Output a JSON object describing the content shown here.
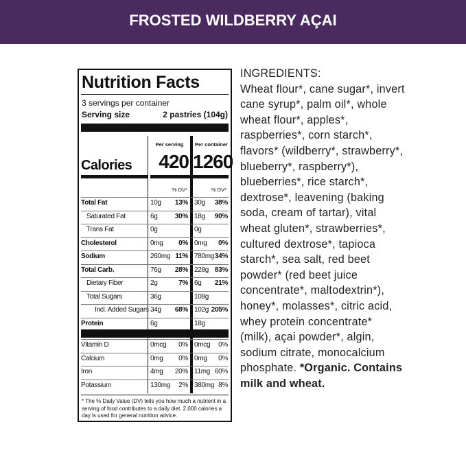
{
  "header": {
    "title": "FROSTED WILDBERRY AÇAI"
  },
  "nutrition": {
    "title": "Nutrition Facts",
    "servings": "3 servings per container",
    "serving_size_label": "Serving size",
    "serving_size": "2 pastries (104g)",
    "calories_label": "Calories",
    "columns": [
      "Per serving",
      "Per container"
    ],
    "calories": [
      "420",
      "1260"
    ],
    "dv_header": "% DV*",
    "rows": [
      [
        "Total Fat",
        "10g",
        "13%",
        "30g",
        "38%"
      ],
      [
        "Saturated Fat",
        "6g",
        "30%",
        "18g",
        "90%"
      ],
      [
        "Trans Fat",
        "0g",
        "0g"
      ],
      [
        "Cholesterol",
        "0mg",
        "0%",
        "0mg",
        "0%"
      ],
      [
        "Sodium",
        "260mg",
        "11%",
        "780mg",
        "34%"
      ],
      [
        "Total Carb.",
        "76g",
        "28%",
        "228g",
        "83%"
      ],
      [
        "Dietary Fiber",
        "2g",
        "7%",
        "6g",
        "21%"
      ],
      [
        "Total Sugars",
        "36g",
        "108g"
      ],
      [
        "Incl. Added Sugars",
        "34g",
        "68%",
        "102g",
        "205%"
      ],
      [
        "Protein",
        "6g",
        "18g"
      ]
    ],
    "vitamins": [
      [
        "Vitamin D",
        "0mcg",
        "0%",
        "0mcg",
        "0%"
      ],
      [
        "Calcium",
        "0mg",
        "0%",
        "0mg",
        "0%"
      ],
      [
        "Iron",
        "4mg",
        "20%",
        "11mg",
        "60%"
      ],
      [
        "Potassium",
        "130mg",
        "2%",
        "380mg",
        "8%"
      ]
    ],
    "footnote": "* The % Daily Value (DV) tells you how much a nutrient in a serving of food contributes to a daily diet. 2,000 calories a day is used for general nutrition advice."
  },
  "ingredients": {
    "heading": "INGREDIENTS:",
    "text": "Wheat flour*, cane sugar*, invert cane syrup*, palm oil*, whole wheat flour*, apples*, raspberries*, corn starch*, flavors* (wildberry*, strawberry*, blueberry*, raspberry*), blueberries*, rice starch*, dextrose*, leavening (baking soda, cream of tartar), vital wheat gluten*, strawberries*, cultured dextrose*, tapioca starch*, sea salt, red beet powder* (red beet juice concentrate*, maltodextrin*), honey*, molasses*, citric acid, whey protein concentrate* (milk), açai powder*, algin, sodium citrate, monocalcium phosphate.",
    "note": "*Organic. Contains milk and wheat."
  }
}
